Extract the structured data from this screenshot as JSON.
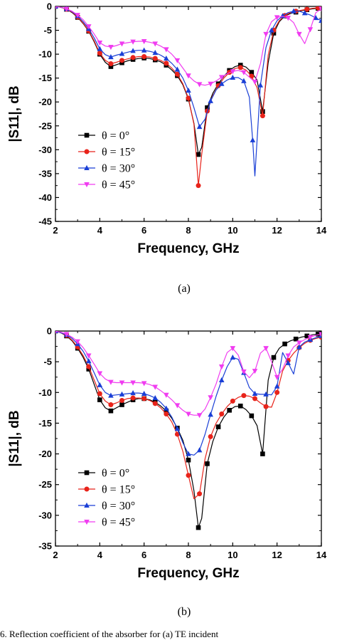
{
  "chart_data": [
    {
      "type": "line",
      "panel_label": "(a)",
      "xlabel": "Frequency, GHz",
      "ylabel": "|S11|, dB",
      "xlim": [
        2,
        14
      ],
      "ylim": [
        -45,
        0
      ],
      "xticks": [
        "2",
        "4",
        "6",
        "8",
        "10",
        "12",
        "14"
      ],
      "yticks": [
        "0",
        "-5",
        "-10",
        "-15",
        "-20",
        "-25",
        "-30",
        "-35",
        "-40",
        "-45"
      ],
      "legend_position": "bottom-left",
      "grid": false,
      "series": [
        {
          "name": "θ =  0°",
          "color": "#000000",
          "marker": "square",
          "x": [
            2.0,
            2.25,
            2.5,
            2.75,
            3.0,
            3.25,
            3.5,
            3.75,
            4.0,
            4.25,
            4.5,
            4.75,
            5.0,
            5.25,
            5.5,
            5.75,
            6.0,
            6.25,
            6.5,
            6.75,
            7.0,
            7.25,
            7.5,
            7.75,
            8.0,
            8.25,
            8.45,
            8.6,
            8.85,
            9.1,
            9.35,
            9.6,
            9.85,
            10.1,
            10.35,
            10.6,
            10.85,
            11.1,
            11.35,
            11.6,
            11.85,
            12.1,
            12.35,
            12.6,
            12.85,
            13.1,
            13.35,
            13.6,
            13.85,
            14.0
          ],
          "y": [
            0.0,
            -0.2,
            -0.6,
            -1.3,
            -2.3,
            -3.6,
            -5.2,
            -7.4,
            -10.0,
            -11.7,
            -12.6,
            -12.2,
            -11.8,
            -11.4,
            -11.1,
            -10.9,
            -10.8,
            -10.9,
            -11.2,
            -11.6,
            -12.3,
            -13.3,
            -14.5,
            -16.4,
            -19.4,
            -24.5,
            -31.0,
            -29.5,
            -21.2,
            -18.2,
            -16.2,
            -14.6,
            -13.4,
            -12.6,
            -12.3,
            -12.7,
            -13.8,
            -15.4,
            -22.0,
            -11.8,
            -5.6,
            -3.2,
            -2.0,
            -1.5,
            -1.2,
            -0.9,
            -0.7,
            -0.5,
            -0.4,
            -0.3
          ]
        },
        {
          "name": "θ = 15°",
          "color": "#e8231a",
          "marker": "circle",
          "x": [
            2.0,
            2.25,
            2.5,
            2.75,
            3.0,
            3.25,
            3.5,
            3.75,
            4.0,
            4.25,
            4.5,
            4.75,
            5.0,
            5.25,
            5.5,
            5.75,
            6.0,
            6.25,
            6.5,
            6.75,
            7.0,
            7.25,
            7.5,
            7.75,
            8.0,
            8.25,
            8.45,
            8.6,
            8.85,
            9.1,
            9.35,
            9.6,
            9.85,
            10.1,
            10.35,
            10.6,
            10.85,
            11.1,
            11.35,
            11.6,
            11.85,
            12.1,
            12.35,
            12.6,
            12.85,
            13.1,
            13.35,
            13.6,
            13.85,
            14.0
          ],
          "y": [
            0.0,
            -0.2,
            -0.6,
            -1.2,
            -2.2,
            -3.5,
            -5.1,
            -7.2,
            -9.8,
            -11.3,
            -12.0,
            -11.7,
            -11.3,
            -11.0,
            -10.7,
            -10.5,
            -10.5,
            -10.6,
            -10.9,
            -11.3,
            -11.9,
            -12.9,
            -14.2,
            -16.2,
            -19.2,
            -24.7,
            -37.5,
            -31.0,
            -21.9,
            -18.7,
            -16.6,
            -15.0,
            -13.8,
            -13.0,
            -12.8,
            -13.3,
            -14.6,
            -17.0,
            -22.9,
            -10.2,
            -5.0,
            -3.0,
            -1.9,
            -1.3,
            -1.0,
            -0.8,
            -0.6,
            -0.4,
            -0.3,
            -0.3
          ]
        },
        {
          "name": "θ = 30°",
          "color": "#1a3fd6",
          "marker": "triangle",
          "x": [
            2.0,
            2.25,
            2.5,
            2.75,
            3.0,
            3.25,
            3.5,
            3.75,
            4.0,
            4.25,
            4.5,
            4.75,
            5.0,
            5.25,
            5.5,
            5.75,
            6.0,
            6.25,
            6.5,
            6.75,
            7.0,
            7.25,
            7.5,
            7.75,
            8.0,
            8.25,
            8.5,
            8.75,
            9.0,
            9.25,
            9.5,
            9.75,
            10.0,
            10.25,
            10.5,
            10.75,
            10.9,
            11.0,
            11.25,
            11.5,
            11.75,
            12.0,
            12.25,
            12.5,
            12.75,
            13.0,
            13.25,
            13.5,
            13.75,
            14.0
          ],
          "y": [
            0.0,
            -0.2,
            -0.5,
            -1.1,
            -2.0,
            -3.2,
            -4.7,
            -6.6,
            -8.9,
            -10.1,
            -10.6,
            -10.2,
            -9.9,
            -9.6,
            -9.3,
            -9.2,
            -9.2,
            -9.4,
            -9.7,
            -10.2,
            -10.9,
            -11.9,
            -13.2,
            -15.0,
            -17.6,
            -21.2,
            -25.2,
            -23.6,
            -19.8,
            -17.5,
            -16.2,
            -15.4,
            -14.9,
            -14.9,
            -15.6,
            -19.0,
            -28.0,
            -35.5,
            -16.5,
            -8.6,
            -5.0,
            -3.0,
            -2.0,
            -1.3,
            -1.0,
            -1.0,
            -1.4,
            -1.8,
            -2.4,
            -3.0
          ]
        },
        {
          "name": "θ = 45°",
          "color": "#f03cf0",
          "marker": "triangle-down",
          "x": [
            2.0,
            2.25,
            2.5,
            2.75,
            3.0,
            3.25,
            3.5,
            3.75,
            4.0,
            4.25,
            4.5,
            4.75,
            5.0,
            5.25,
            5.5,
            5.75,
            6.0,
            6.25,
            6.5,
            6.75,
            7.0,
            7.25,
            7.5,
            7.75,
            8.0,
            8.25,
            8.5,
            8.75,
            9.0,
            9.25,
            9.5,
            9.75,
            10.0,
            10.25,
            10.5,
            10.75,
            11.0,
            11.25,
            11.5,
            11.75,
            12.0,
            12.25,
            12.5,
            12.75,
            13.0,
            13.25,
            13.5,
            13.75,
            14.0
          ],
          "y": [
            0.0,
            -0.2,
            -0.5,
            -1.0,
            -1.8,
            -2.8,
            -4.2,
            -5.8,
            -7.6,
            -8.3,
            -8.5,
            -8.2,
            -7.8,
            -7.6,
            -7.4,
            -7.3,
            -7.3,
            -7.5,
            -7.8,
            -8.3,
            -9.0,
            -10.0,
            -11.3,
            -12.9,
            -14.5,
            -15.6,
            -16.3,
            -16.5,
            -16.2,
            -15.6,
            -14.8,
            -14.1,
            -13.6,
            -13.4,
            -13.8,
            -14.8,
            -15.8,
            -12.0,
            -5.8,
            -3.2,
            -2.3,
            -2.1,
            -2.4,
            -3.4,
            -5.8,
            -7.8,
            -4.8,
            -1.3,
            -0.5
          ]
        }
      ]
    },
    {
      "type": "line",
      "panel_label": "(b)",
      "xlabel": "Frequency, GHz",
      "ylabel": "|S11|, dB",
      "xlim": [
        2,
        14
      ],
      "ylim": [
        -35,
        0
      ],
      "xticks": [
        "2",
        "4",
        "6",
        "8",
        "10",
        "12",
        "14"
      ],
      "yticks": [
        "0",
        "-5",
        "-10",
        "-15",
        "-20",
        "-25",
        "-30",
        "-35"
      ],
      "legend_position": "bottom-left",
      "grid": false,
      "series": [
        {
          "name": "θ = 0°",
          "color": "#000000",
          "marker": "square",
          "x": [
            2.0,
            2.25,
            2.5,
            2.75,
            3.0,
            3.25,
            3.5,
            3.75,
            4.0,
            4.25,
            4.5,
            4.75,
            5.0,
            5.25,
            5.5,
            5.75,
            6.0,
            6.25,
            6.5,
            6.75,
            7.0,
            7.25,
            7.5,
            7.75,
            8.0,
            8.25,
            8.45,
            8.6,
            8.85,
            9.1,
            9.35,
            9.6,
            9.85,
            10.1,
            10.35,
            10.6,
            10.85,
            11.1,
            11.35,
            11.6,
            11.85,
            12.1,
            12.35,
            12.6,
            12.85,
            13.1,
            13.35,
            13.6,
            13.85,
            14.0
          ],
          "y": [
            0.0,
            -0.3,
            -0.8,
            -1.6,
            -2.8,
            -4.3,
            -6.2,
            -8.7,
            -11.2,
            -12.5,
            -13.0,
            -12.5,
            -12.0,
            -11.6,
            -11.2,
            -11.0,
            -11.0,
            -11.2,
            -11.6,
            -12.2,
            -13.0,
            -14.2,
            -15.8,
            -17.8,
            -21.0,
            -26.0,
            -32.0,
            -30.5,
            -21.6,
            -18.0,
            -15.6,
            -14.0,
            -12.9,
            -12.3,
            -12.2,
            -12.8,
            -13.8,
            -15.4,
            -20.0,
            -8.0,
            -4.3,
            -2.8,
            -2.1,
            -1.6,
            -1.3,
            -1.0,
            -0.8,
            -0.6,
            -0.5,
            -0.4
          ]
        },
        {
          "name": "θ = 15°",
          "color": "#e8231a",
          "marker": "circle",
          "x": [
            2.0,
            2.25,
            2.5,
            2.75,
            3.0,
            3.25,
            3.5,
            3.75,
            4.0,
            4.25,
            4.5,
            4.75,
            5.0,
            5.25,
            5.5,
            5.75,
            6.0,
            6.25,
            6.5,
            6.75,
            7.0,
            7.25,
            7.5,
            7.75,
            8.0,
            8.25,
            8.5,
            8.75,
            9.0,
            9.25,
            9.5,
            9.75,
            10.0,
            10.25,
            10.5,
            10.75,
            11.0,
            11.25,
            11.5,
            11.75,
            12.0,
            12.25,
            12.5,
            12.75,
            13.0,
            13.25,
            13.5,
            13.75,
            14.0
          ],
          "y": [
            0.0,
            -0.3,
            -0.7,
            -1.5,
            -2.6,
            -4.0,
            -5.8,
            -8.0,
            -10.2,
            -11.4,
            -12.0,
            -11.7,
            -11.3,
            -11.0,
            -10.9,
            -10.9,
            -11.0,
            -11.3,
            -11.8,
            -12.5,
            -13.5,
            -14.8,
            -16.8,
            -19.6,
            -23.5,
            -27.3,
            -26.5,
            -20.8,
            -17.2,
            -15.0,
            -13.5,
            -12.3,
            -11.4,
            -10.8,
            -10.5,
            -10.6,
            -11.0,
            -11.7,
            -12.3,
            -12.4,
            -10.0,
            -6.5,
            -4.8,
            -3.6,
            -2.7,
            -2.0,
            -1.5,
            -1.2,
            -1.0
          ]
        },
        {
          "name": "θ = 30°",
          "color": "#1a3fd6",
          "marker": "triangle",
          "x": [
            2.0,
            2.25,
            2.5,
            2.75,
            3.0,
            3.25,
            3.5,
            3.75,
            4.0,
            4.25,
            4.5,
            4.75,
            5.0,
            5.25,
            5.5,
            5.75,
            6.0,
            6.25,
            6.5,
            6.75,
            7.0,
            7.25,
            7.5,
            7.75,
            8.0,
            8.25,
            8.5,
            8.75,
            9.0,
            9.25,
            9.5,
            9.75,
            10.0,
            10.25,
            10.5,
            10.75,
            11.0,
            11.25,
            11.5,
            11.75,
            12.0,
            12.25,
            12.5,
            12.75,
            13.0,
            13.25,
            13.5,
            13.75,
            14.0
          ],
          "y": [
            0.0,
            -0.3,
            -0.6,
            -1.2,
            -2.1,
            -3.3,
            -4.9,
            -6.8,
            -8.8,
            -10.0,
            -10.5,
            -10.4,
            -10.3,
            -10.2,
            -10.1,
            -10.1,
            -10.2,
            -10.5,
            -10.9,
            -11.6,
            -12.6,
            -14.0,
            -15.9,
            -18.2,
            -20.0,
            -20.2,
            -19.4,
            -16.8,
            -13.6,
            -10.6,
            -8.0,
            -5.8,
            -4.3,
            -4.6,
            -6.8,
            -9.2,
            -10.2,
            -10.3,
            -10.3,
            -10.4,
            -9.0,
            -3.5,
            -5.2,
            -7.0,
            -2.6,
            -1.8,
            -1.4,
            -1.1,
            -0.8
          ]
        },
        {
          "name": "θ = 45°",
          "color": "#f03cf0",
          "marker": "triangle-down",
          "x": [
            2.0,
            2.25,
            2.5,
            2.75,
            3.0,
            3.25,
            3.5,
            3.75,
            4.0,
            4.25,
            4.5,
            4.75,
            5.0,
            5.25,
            5.5,
            5.75,
            6.0,
            6.25,
            6.5,
            6.75,
            7.0,
            7.25,
            7.5,
            7.75,
            8.0,
            8.25,
            8.5,
            8.75,
            9.0,
            9.25,
            9.5,
            9.75,
            10.0,
            10.25,
            10.5,
            10.75,
            11.0,
            11.25,
            11.5,
            11.75,
            12.0,
            12.25,
            12.5,
            12.75,
            13.0,
            13.25,
            13.5,
            13.75,
            14.0
          ],
          "y": [
            0.0,
            -0.2,
            -0.5,
            -1.0,
            -1.7,
            -2.7,
            -4.0,
            -5.4,
            -6.9,
            -7.8,
            -8.3,
            -8.4,
            -8.4,
            -8.4,
            -8.4,
            -8.4,
            -8.5,
            -8.7,
            -9.1,
            -9.7,
            -10.4,
            -11.2,
            -12.1,
            -12.9,
            -13.5,
            -13.7,
            -13.7,
            -12.7,
            -10.8,
            -8.6,
            -5.8,
            -3.5,
            -2.8,
            -3.9,
            -6.6,
            -7.6,
            -6.5,
            -3.6,
            -2.8,
            -5.0,
            -7.5,
            -6.2,
            -4.0,
            -2.6,
            -1.9,
            -1.4,
            -1.0,
            -0.7,
            -0.5
          ]
        }
      ]
    }
  ],
  "caption_text": "6. Reflection coefficient of the absorber for (a) TE incident"
}
